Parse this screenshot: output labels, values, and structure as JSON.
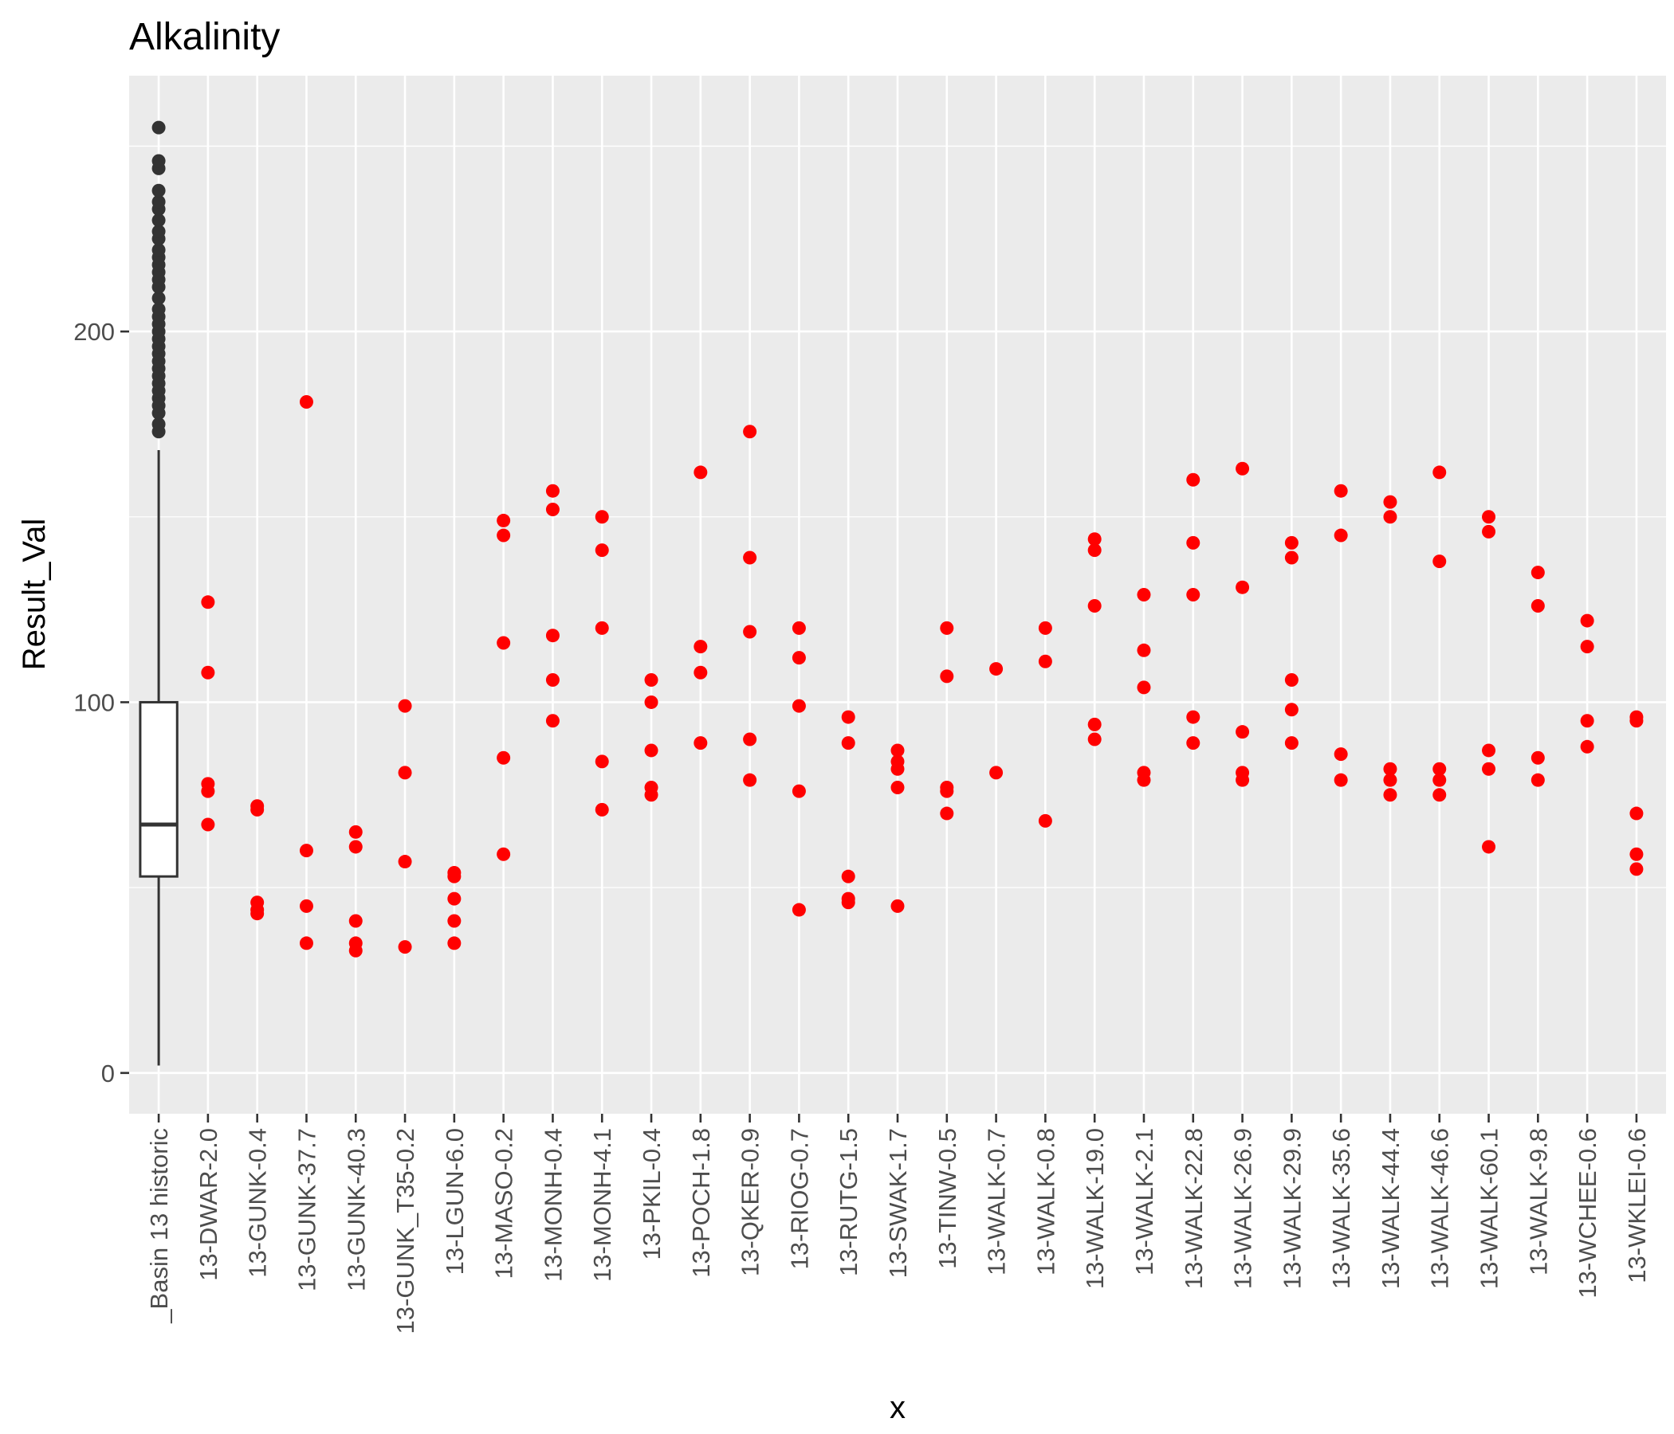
{
  "chart_data": {
    "type": "scatter",
    "title": "Alkalinity",
    "xlabel": "x",
    "ylabel": "Result_Val",
    "ylim": [
      -11,
      269
    ],
    "yticks": [
      0,
      100,
      200
    ],
    "grid": true,
    "categories": [
      "_Basin 13 historic",
      "13-DWAR-2.0",
      "13-GUNK-0.4",
      "13-GUNK-37.7",
      "13-GUNK-40.3",
      "13-GUNK_T35-0.2",
      "13-LGUN-6.0",
      "13-MASO-0.2",
      "13-MONH-0.4",
      "13-MONH-4.1",
      "13-PKIL-0.4",
      "13-POCH-1.8",
      "13-QKER-0.9",
      "13-RIOG-0.7",
      "13-RUTG-1.5",
      "13-SWAK-1.7",
      "13-TINW-0.5",
      "13-WALK-0.7",
      "13-WALK-0.8",
      "13-WALK-19.0",
      "13-WALK-2.1",
      "13-WALK-22.8",
      "13-WALK-26.9",
      "13-WALK-29.9",
      "13-WALK-35.6",
      "13-WALK-44.4",
      "13-WALK-46.6",
      "13-WALK-60.1",
      "13-WALK-9.8",
      "13-WCHEE-0.6",
      "13-WKLEI-0.6"
    ],
    "boxplot": {
      "category": "_Basin 13 historic",
      "whisker_low": 2,
      "q1": 53,
      "median": 67,
      "q3": 100,
      "whisker_high": 168,
      "outliers": [
        173,
        175,
        178,
        180,
        182,
        184,
        186,
        188,
        190,
        192,
        194,
        196,
        198,
        200,
        202,
        204,
        206,
        209,
        212,
        214,
        216,
        218,
        220,
        222,
        225,
        227,
        230,
        233,
        235,
        238,
        244,
        246,
        255
      ],
      "color": "#333333"
    },
    "points_color": "#ff0000",
    "points": [
      {
        "category": "13-DWAR-2.0",
        "values": [
          127,
          108,
          78,
          76,
          67
        ]
      },
      {
        "category": "13-GUNK-0.4",
        "values": [
          72,
          71,
          46,
          44,
          43
        ]
      },
      {
        "category": "13-GUNK-37.7",
        "values": [
          181,
          60,
          45,
          35
        ]
      },
      {
        "category": "13-GUNK-40.3",
        "values": [
          65,
          61,
          41,
          35,
          33
        ]
      },
      {
        "category": "13-GUNK_T35-0.2",
        "values": [
          99,
          81,
          57,
          34
        ]
      },
      {
        "category": "13-LGUN-6.0",
        "values": [
          54,
          53,
          47,
          41,
          35
        ]
      },
      {
        "category": "13-MASO-0.2",
        "values": [
          149,
          145,
          116,
          85,
          59
        ]
      },
      {
        "category": "13-MONH-0.4",
        "values": [
          157,
          152,
          118,
          106,
          95
        ]
      },
      {
        "category": "13-MONH-4.1",
        "values": [
          150,
          141,
          120,
          84,
          71
        ]
      },
      {
        "category": "13-PKIL-0.4",
        "values": [
          106,
          100,
          87,
          77,
          75
        ]
      },
      {
        "category": "13-POCH-1.8",
        "values": [
          162,
          115,
          108,
          89
        ]
      },
      {
        "category": "13-QKER-0.9",
        "values": [
          173,
          139,
          119,
          90,
          79
        ]
      },
      {
        "category": "13-RIOG-0.7",
        "values": [
          120,
          112,
          99,
          76,
          44
        ]
      },
      {
        "category": "13-RUTG-1.5",
        "values": [
          96,
          89,
          53,
          47,
          46
        ]
      },
      {
        "category": "13-SWAK-1.7",
        "values": [
          87,
          84,
          82,
          77,
          45
        ]
      },
      {
        "category": "13-TINW-0.5",
        "values": [
          120,
          107,
          77,
          76,
          70
        ]
      },
      {
        "category": "13-WALK-0.7",
        "values": [
          109,
          81
        ]
      },
      {
        "category": "13-WALK-0.8",
        "values": [
          120,
          111,
          68
        ]
      },
      {
        "category": "13-WALK-19.0",
        "values": [
          144,
          141,
          126,
          94,
          90
        ]
      },
      {
        "category": "13-WALK-2.1",
        "values": [
          129,
          114,
          104,
          81,
          79
        ]
      },
      {
        "category": "13-WALK-22.8",
        "values": [
          160,
          143,
          129,
          96,
          89
        ]
      },
      {
        "category": "13-WALK-26.9",
        "values": [
          163,
          131,
          92,
          81,
          79
        ]
      },
      {
        "category": "13-WALK-29.9",
        "values": [
          143,
          139,
          106,
          98,
          89
        ]
      },
      {
        "category": "13-WALK-35.6",
        "values": [
          157,
          145,
          86,
          79
        ]
      },
      {
        "category": "13-WALK-44.4",
        "values": [
          154,
          150,
          82,
          79,
          75
        ]
      },
      {
        "category": "13-WALK-46.6",
        "values": [
          162,
          138,
          82,
          79,
          75
        ]
      },
      {
        "category": "13-WALK-60.1",
        "values": [
          150,
          146,
          87,
          82,
          61
        ]
      },
      {
        "category": "13-WALK-9.8",
        "values": [
          135,
          126,
          85,
          79
        ]
      },
      {
        "category": "13-WCHEE-0.6",
        "values": [
          122,
          115,
          95,
          88
        ]
      },
      {
        "category": "13-WKLEI-0.6",
        "values": [
          96,
          95,
          70,
          59,
          55
        ]
      }
    ]
  }
}
